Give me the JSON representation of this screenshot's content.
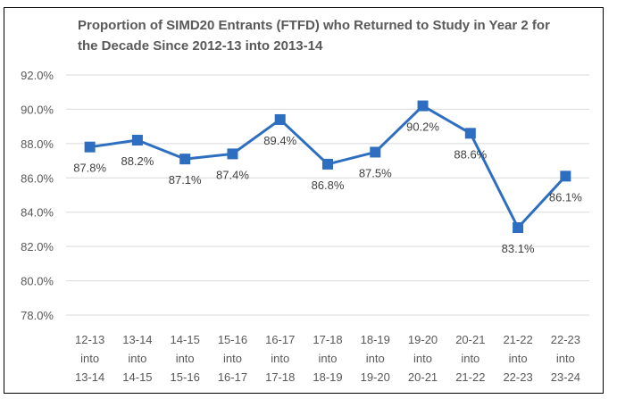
{
  "chart_data": {
    "type": "line",
    "title": "Proportion of SIMD20 Entrants (FTFD) who Returned to Study in Year 2 for the Decade Since 2012-13 into 2013-14",
    "categories": [
      [
        "12-13",
        "into",
        "13-14"
      ],
      [
        "13-14",
        "into",
        "14-15"
      ],
      [
        "14-15",
        "into",
        "15-16"
      ],
      [
        "15-16",
        "into",
        "16-17"
      ],
      [
        "16-17",
        "into",
        "17-18"
      ],
      [
        "17-18",
        "into",
        "18-19"
      ],
      [
        "18-19",
        "into",
        "19-20"
      ],
      [
        "19-20",
        "into",
        "20-21"
      ],
      [
        "20-21",
        "into",
        "21-22"
      ],
      [
        "21-22",
        "into",
        "22-23"
      ],
      [
        "22-23",
        "into",
        "23-24"
      ]
    ],
    "values": [
      87.8,
      88.2,
      87.1,
      87.4,
      89.4,
      86.8,
      87.5,
      90.2,
      88.6,
      83.1,
      86.1
    ],
    "data_labels": [
      "87.8%",
      "88.2%",
      "87.1%",
      "87.4%",
      "89.4%",
      "86.8%",
      "87.5%",
      "90.2%",
      "88.6%",
      "83.1%",
      "86.1%"
    ],
    "y_ticks": [
      "78.0%",
      "80.0%",
      "82.0%",
      "84.0%",
      "86.0%",
      "88.0%",
      "90.0%",
      "92.0%"
    ],
    "ylim": [
      78,
      92
    ],
    "grid": true,
    "legend": "none",
    "series_color": "#2e6ec0",
    "xlabel": "",
    "ylabel": ""
  }
}
